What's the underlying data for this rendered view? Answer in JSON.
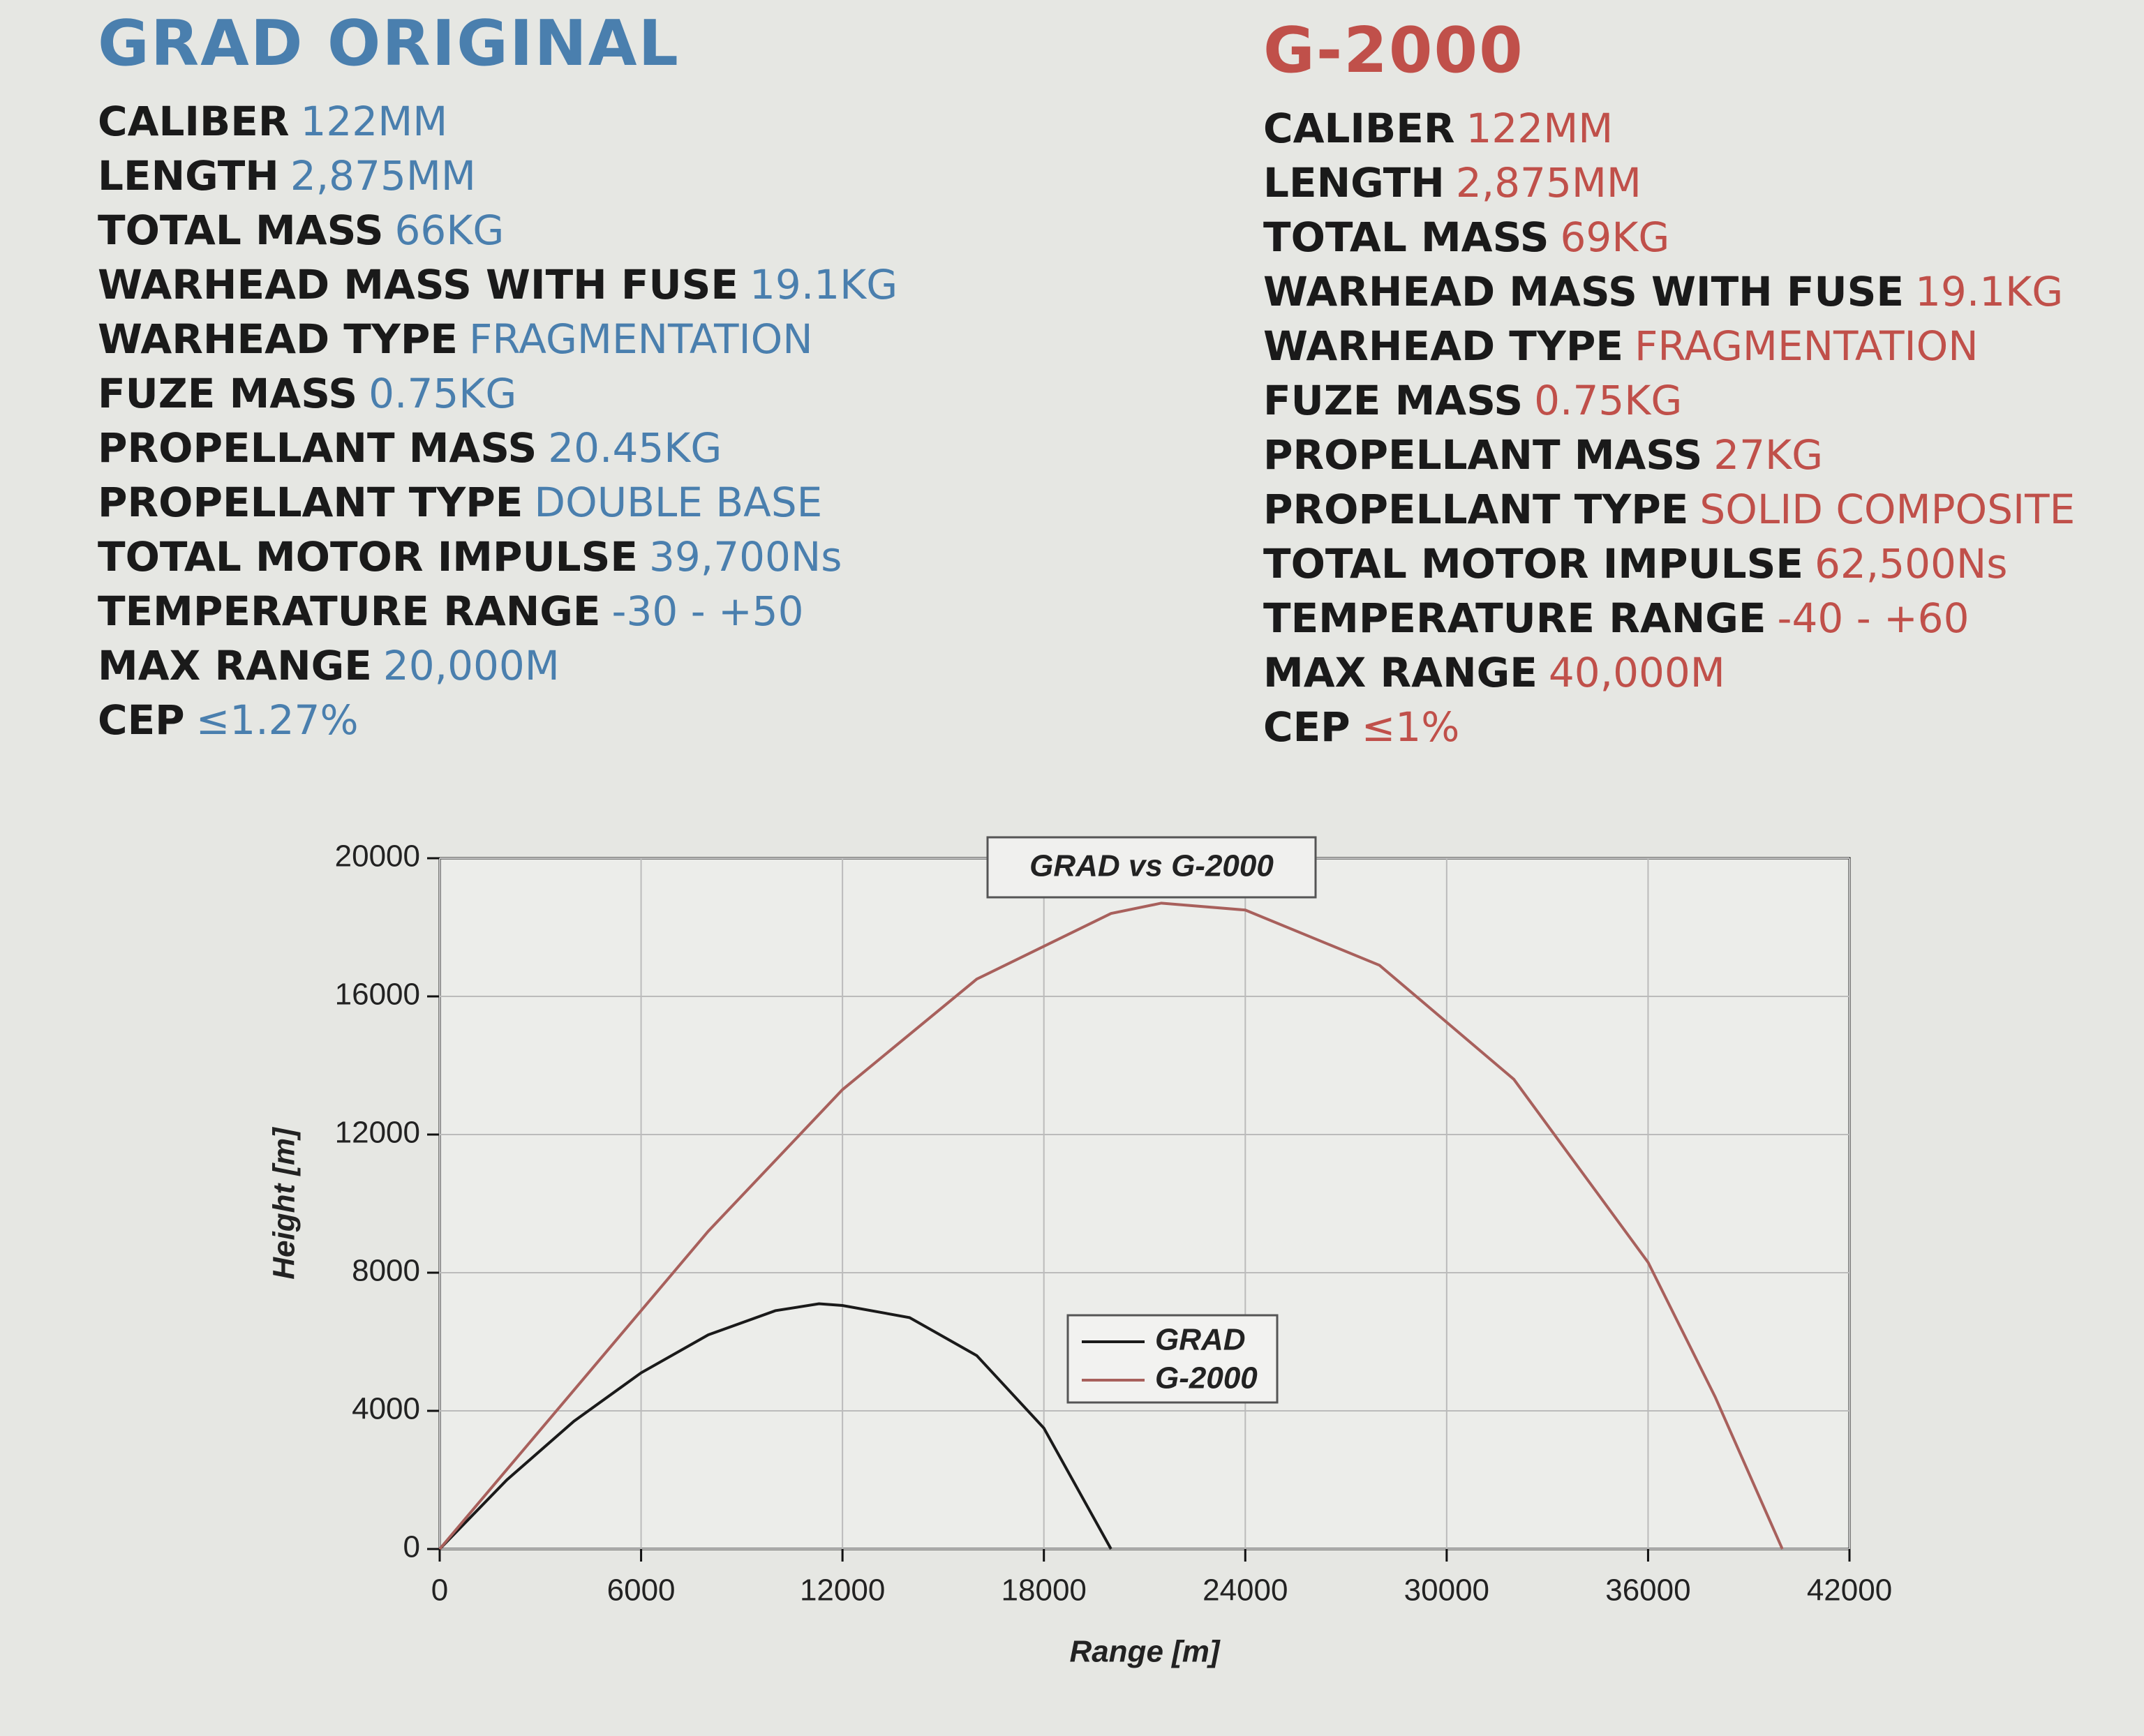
{
  "grad": {
    "title": "GRAD ORIGINAL",
    "specs": [
      {
        "label": "CALIBER",
        "value": "122MM"
      },
      {
        "label": "LENGTH",
        "value": "2,875MM"
      },
      {
        "label": "TOTAL MASS",
        "value": "66KG"
      },
      {
        "label": "WARHEAD MASS WITH FUSE",
        "value": "19.1KG"
      },
      {
        "label": "WARHEAD TYPE",
        "value": "FRAGMENTATION"
      },
      {
        "label": "FUZE MASS",
        "value": "0.75KG"
      },
      {
        "label": "PROPELLANT MASS",
        "value": "20.45KG"
      },
      {
        "label": "PROPELLANT TYPE",
        "value": "DOUBLE BASE"
      },
      {
        "label": "TOTAL MOTOR IMPULSE",
        "value": "39,700Ns"
      },
      {
        "label": "TEMPERATURE RANGE",
        "value": "-30 - +50"
      },
      {
        "label": "MAX RANGE",
        "value": "20,000M"
      },
      {
        "label": "CEP",
        "value": "≤1.27%"
      }
    ]
  },
  "g2000": {
    "title": "G-2000",
    "specs": [
      {
        "label": "CALIBER",
        "value": "122MM"
      },
      {
        "label": "LENGTH",
        "value": "2,875MM"
      },
      {
        "label": "TOTAL MASS",
        "value": "69KG"
      },
      {
        "label": "WARHEAD MASS WITH FUSE",
        "value": "19.1KG"
      },
      {
        "label": "WARHEAD TYPE",
        "value": "FRAGMENTATION"
      },
      {
        "label": "FUZE MASS",
        "value": "0.75KG"
      },
      {
        "label": "PROPELLANT MASS",
        "value": "27KG"
      },
      {
        "label": "PROPELLANT TYPE",
        "value": "SOLID COMPOSITE"
      },
      {
        "label": "TOTAL MOTOR IMPULSE",
        "value": "62,500Ns"
      },
      {
        "label": "TEMPERATURE RANGE",
        "value": "-40 - +60"
      },
      {
        "label": "MAX RANGE",
        "value": "40,000M"
      },
      {
        "label": "CEP",
        "value": "≤1%"
      }
    ]
  },
  "chart_data": {
    "type": "line",
    "title": "GRAD vs G-2000",
    "x_label": "Range [m]",
    "y_label": "Height [m]",
    "series": [
      {
        "name": "GRAD",
        "color": "#1a1a1a",
        "x": [
          0,
          2000,
          4000,
          6000,
          8000,
          10000,
          11300,
          12000,
          14000,
          16000,
          18000,
          20000
        ],
        "values": [
          0,
          2000,
          3700,
          5100,
          6200,
          6900,
          7100,
          7050,
          6700,
          5600,
          3500,
          0
        ]
      },
      {
        "name": "G-2000",
        "color": "#a8605c",
        "x": [
          0,
          4000,
          8000,
          12000,
          16000,
          20000,
          21500,
          24000,
          28000,
          32000,
          36000,
          38000,
          40000
        ],
        "values": [
          0,
          4600,
          9200,
          13300,
          16500,
          18400,
          18700,
          18500,
          16900,
          13600,
          8300,
          4400,
          0
        ]
      }
    ],
    "xlim": [
      0,
      42000
    ],
    "xticks": [
      0,
      6000,
      12000,
      18000,
      24000,
      30000,
      36000,
      42000
    ],
    "ylim": [
      0,
      20000
    ],
    "yticks": [
      0,
      4000,
      8000,
      12000,
      16000,
      20000
    ],
    "grid": true,
    "legend": "center"
  }
}
